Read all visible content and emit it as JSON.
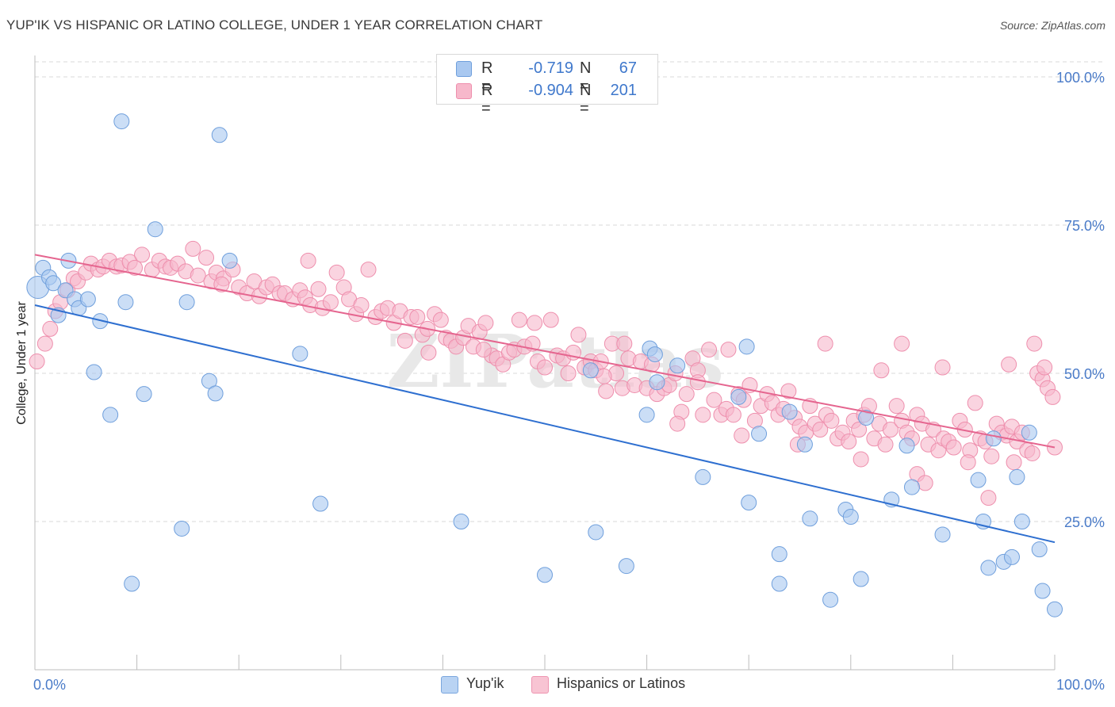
{
  "title": "YUP'IK VS HISPANIC OR LATINO COLLEGE, UNDER 1 YEAR CORRELATION CHART",
  "source": "Source: ZipAtlas.com",
  "watermark": "ZIPatlas",
  "legend_top": [
    {
      "r_label": "R =",
      "r_value": "-0.719",
      "n_label": "N =",
      "n_value": "67",
      "color": "#a9c8f0"
    },
    {
      "r_label": "R =",
      "r_value": "-0.904",
      "n_label": "N =",
      "n_value": "201",
      "color": "#f7b8cb"
    }
  ],
  "legend_bottom": [
    {
      "label": "Yup'ik",
      "color": "#b9d3f3"
    },
    {
      "label": "Hispanics or Latinos",
      "color": "#f8c4d3"
    }
  ],
  "colors": {
    "blue_fill": "#a9c8f0",
    "blue_stroke": "#6f9fdc",
    "blue_line": "#2e6fd0",
    "pink_fill": "#f7b8cb",
    "pink_stroke": "#ee8fad",
    "pink_line": "#e5658f",
    "tick_label": "#4a7bc8",
    "grid": "#d9d9d9"
  },
  "chart_data": {
    "type": "scatter",
    "title": "YUP'IK VS HISPANIC OR LATINO COLLEGE, UNDER 1 YEAR CORRELATION CHART",
    "xlabel": "",
    "ylabel": "College, Under 1 year",
    "xlim": [
      0,
      100
    ],
    "ylim": [
      0,
      100
    ],
    "x_tick_labels": [
      "0.0%",
      "100.0%"
    ],
    "y_tick_labels": [
      "25.0%",
      "50.0%",
      "75.0%",
      "100.0%"
    ],
    "y_ticks": [
      25,
      50,
      75,
      100
    ],
    "grid": true,
    "legend_position": "top-center",
    "series": [
      {
        "name": "Yup'ik",
        "trend": {
          "x": [
            0,
            100
          ],
          "y": [
            61.5,
            21.5
          ]
        },
        "points": [
          [
            0.3,
            64.5
          ],
          [
            0.8,
            67.8
          ],
          [
            1.4,
            66.2
          ],
          [
            1.8,
            65.2
          ],
          [
            2.3,
            59.8
          ],
          [
            3.0,
            64.0
          ],
          [
            3.3,
            69.0
          ],
          [
            3.9,
            62.5
          ],
          [
            4.3,
            61.0
          ],
          [
            5.2,
            62.5
          ],
          [
            5.8,
            50.2
          ],
          [
            6.4,
            58.8
          ],
          [
            7.4,
            43.0
          ],
          [
            8.5,
            92.5
          ],
          [
            8.9,
            62.0
          ],
          [
            9.5,
            14.5
          ],
          [
            10.7,
            46.5
          ],
          [
            11.8,
            74.3
          ],
          [
            14.4,
            23.8
          ],
          [
            14.9,
            62.0
          ],
          [
            17.1,
            48.7
          ],
          [
            17.7,
            46.6
          ],
          [
            18.1,
            90.2
          ],
          [
            19.1,
            69.0
          ],
          [
            26.0,
            53.3
          ],
          [
            28.0,
            28.0
          ],
          [
            41.8,
            25.0
          ],
          [
            50.0,
            16.0
          ],
          [
            54.5,
            50.5
          ],
          [
            55.0,
            23.2
          ],
          [
            58.0,
            17.5
          ],
          [
            60.0,
            43.0
          ],
          [
            60.3,
            54.2
          ],
          [
            60.8,
            53.2
          ],
          [
            61.0,
            48.5
          ],
          [
            63.0,
            51.3
          ],
          [
            65.5,
            32.5
          ],
          [
            69.0,
            46.0
          ],
          [
            70.0,
            28.2
          ],
          [
            69.8,
            54.5
          ],
          [
            71.0,
            39.8
          ],
          [
            73.0,
            19.5
          ],
          [
            73.0,
            14.5
          ],
          [
            74.0,
            43.5
          ],
          [
            75.5,
            38.0
          ],
          [
            76.0,
            25.5
          ],
          [
            78.0,
            11.8
          ],
          [
            79.5,
            27.0
          ],
          [
            80.0,
            25.8
          ],
          [
            81.0,
            15.3
          ],
          [
            81.5,
            42.5
          ],
          [
            84.0,
            28.7
          ],
          [
            85.5,
            37.8
          ],
          [
            86.0,
            30.8
          ],
          [
            89.0,
            22.8
          ],
          [
            92.5,
            32.0
          ],
          [
            93.0,
            25.0
          ],
          [
            93.5,
            17.2
          ],
          [
            94.0,
            39.0
          ],
          [
            95.0,
            18.2
          ],
          [
            95.8,
            19.0
          ],
          [
            96.3,
            32.5
          ],
          [
            96.8,
            25.0
          ],
          [
            97.5,
            40.0
          ],
          [
            98.5,
            20.3
          ],
          [
            98.8,
            13.3
          ],
          [
            100.0,
            10.2
          ]
        ]
      },
      {
        "name": "Hispanics or Latinos",
        "trend": {
          "x": [
            0,
            100
          ],
          "y": [
            70.0,
            37.5
          ]
        },
        "points": [
          [
            0.2,
            52.0
          ],
          [
            1.0,
            55.0
          ],
          [
            1.5,
            57.5
          ],
          [
            2.0,
            60.5
          ],
          [
            2.5,
            62.0
          ],
          [
            3.2,
            64.0
          ],
          [
            3.8,
            66.0
          ],
          [
            4.2,
            65.5
          ],
          [
            5.0,
            67.0
          ],
          [
            5.5,
            68.5
          ],
          [
            6.2,
            67.5
          ],
          [
            6.7,
            68.0
          ],
          [
            7.3,
            69.0
          ],
          [
            8.0,
            68.0
          ],
          [
            8.5,
            68.2
          ],
          [
            9.3,
            68.8
          ],
          [
            9.8,
            67.8
          ],
          [
            10.5,
            70.0
          ],
          [
            11.5,
            67.5
          ],
          [
            12.2,
            69.0
          ],
          [
            12.8,
            68.0
          ],
          [
            13.3,
            67.8
          ],
          [
            14.0,
            68.5
          ],
          [
            14.8,
            67.2
          ],
          [
            15.5,
            71.0
          ],
          [
            16.0,
            66.5
          ],
          [
            16.8,
            69.5
          ],
          [
            17.3,
            65.5
          ],
          [
            17.8,
            67.0
          ],
          [
            18.5,
            66.0
          ],
          [
            19.4,
            67.5
          ],
          [
            20.0,
            64.5
          ],
          [
            20.8,
            63.5
          ],
          [
            21.5,
            65.5
          ],
          [
            22.0,
            63.0
          ],
          [
            22.7,
            64.5
          ],
          [
            23.3,
            65.0
          ],
          [
            24.0,
            63.5
          ],
          [
            24.5,
            63.5
          ],
          [
            25.3,
            62.5
          ],
          [
            26.0,
            64.0
          ],
          [
            26.5,
            62.8
          ],
          [
            27.0,
            61.5
          ],
          [
            27.8,
            64.2
          ],
          [
            28.2,
            61.0
          ],
          [
            29.0,
            62.0
          ],
          [
            29.6,
            67.0
          ],
          [
            30.3,
            64.5
          ],
          [
            30.8,
            62.5
          ],
          [
            31.5,
            60.0
          ],
          [
            32.0,
            61.5
          ],
          [
            32.7,
            67.5
          ],
          [
            33.4,
            59.5
          ],
          [
            34.0,
            60.5
          ],
          [
            34.6,
            61.0
          ],
          [
            35.2,
            58.5
          ],
          [
            35.8,
            60.5
          ],
          [
            36.3,
            55.5
          ],
          [
            36.9,
            59.5
          ],
          [
            37.5,
            59.5
          ],
          [
            38.0,
            56.5
          ],
          [
            38.5,
            57.5
          ],
          [
            39.2,
            60.0
          ],
          [
            39.8,
            59.0
          ],
          [
            40.3,
            56.0
          ],
          [
            40.8,
            55.5
          ],
          [
            41.3,
            54.5
          ],
          [
            42.0,
            56.0
          ],
          [
            42.5,
            58.0
          ],
          [
            43.0,
            54.5
          ],
          [
            43.6,
            57.0
          ],
          [
            44.2,
            58.5
          ],
          [
            44.8,
            53.0
          ],
          [
            45.3,
            52.5
          ],
          [
            45.9,
            51.5
          ],
          [
            46.5,
            53.5
          ],
          [
            47.0,
            54.0
          ],
          [
            47.5,
            59.0
          ],
          [
            48.0,
            54.5
          ],
          [
            48.8,
            55.0
          ],
          [
            49.3,
            52.0
          ],
          [
            50.0,
            51.0
          ],
          [
            50.6,
            59.0
          ],
          [
            51.2,
            53.0
          ],
          [
            51.8,
            52.5
          ],
          [
            52.3,
            50.0
          ],
          [
            52.8,
            53.5
          ],
          [
            53.3,
            56.5
          ],
          [
            53.9,
            51.0
          ],
          [
            54.5,
            52.0
          ],
          [
            55.0,
            50.5
          ],
          [
            55.5,
            52.0
          ],
          [
            56.0,
            47.0
          ],
          [
            56.6,
            55.0
          ],
          [
            57.0,
            50.0
          ],
          [
            57.6,
            47.5
          ],
          [
            58.2,
            52.5
          ],
          [
            58.8,
            48.0
          ],
          [
            59.4,
            52.0
          ],
          [
            60.0,
            47.5
          ],
          [
            60.5,
            51.5
          ],
          [
            61.0,
            46.5
          ],
          [
            61.7,
            47.5
          ],
          [
            62.2,
            48.0
          ],
          [
            62.8,
            50.0
          ],
          [
            63.4,
            43.5
          ],
          [
            63.9,
            46.5
          ],
          [
            64.5,
            52.5
          ],
          [
            65.0,
            50.5
          ],
          [
            65.5,
            43.0
          ],
          [
            66.1,
            54.0
          ],
          [
            66.6,
            45.5
          ],
          [
            67.3,
            43.0
          ],
          [
            67.8,
            44.0
          ],
          [
            68.5,
            43.0
          ],
          [
            69.0,
            46.5
          ],
          [
            69.5,
            45.5
          ],
          [
            70.1,
            48.0
          ],
          [
            70.6,
            42.0
          ],
          [
            71.2,
            44.5
          ],
          [
            71.8,
            46.5
          ],
          [
            72.3,
            45.0
          ],
          [
            72.9,
            43.0
          ],
          [
            73.4,
            44.0
          ],
          [
            73.9,
            47.0
          ],
          [
            74.5,
            42.5
          ],
          [
            75.0,
            41.0
          ],
          [
            75.6,
            40.0
          ],
          [
            76.0,
            44.5
          ],
          [
            76.5,
            41.5
          ],
          [
            77.0,
            40.5
          ],
          [
            77.6,
            43.0
          ],
          [
            78.1,
            42.0
          ],
          [
            78.7,
            39.0
          ],
          [
            79.2,
            40.0
          ],
          [
            79.8,
            38.5
          ],
          [
            80.3,
            42.0
          ],
          [
            80.8,
            40.5
          ],
          [
            81.3,
            43.0
          ],
          [
            81.8,
            44.5
          ],
          [
            82.3,
            39.0
          ],
          [
            82.8,
            41.5
          ],
          [
            83.4,
            38.0
          ],
          [
            83.9,
            40.5
          ],
          [
            84.5,
            44.5
          ],
          [
            85.0,
            42.0
          ],
          [
            85.5,
            40.0
          ],
          [
            86.0,
            39.0
          ],
          [
            86.5,
            43.0
          ],
          [
            87.0,
            41.5
          ],
          [
            87.6,
            38.0
          ],
          [
            88.1,
            40.5
          ],
          [
            88.6,
            37.0
          ],
          [
            89.1,
            39.0
          ],
          [
            89.6,
            38.5
          ],
          [
            90.1,
            37.5
          ],
          [
            90.7,
            42.0
          ],
          [
            91.2,
            40.5
          ],
          [
            91.7,
            37.0
          ],
          [
            92.2,
            45.0
          ],
          [
            92.7,
            39.0
          ],
          [
            93.2,
            38.5
          ],
          [
            93.8,
            36.0
          ],
          [
            94.3,
            41.5
          ],
          [
            94.8,
            40.0
          ],
          [
            95.3,
            39.5
          ],
          [
            95.8,
            41.0
          ],
          [
            96.3,
            38.5
          ],
          [
            96.8,
            40.0
          ],
          [
            97.3,
            37.0
          ],
          [
            97.8,
            36.5
          ],
          [
            98.3,
            50.0
          ],
          [
            98.8,
            49.0
          ],
          [
            99.3,
            47.5
          ],
          [
            99.8,
            46.0
          ],
          [
            100.0,
            37.5
          ],
          [
            18.3,
            65.0
          ],
          [
            26.8,
            69.0
          ],
          [
            44.0,
            54.0
          ],
          [
            55.8,
            49.5
          ],
          [
            63.0,
            41.5
          ],
          [
            69.3,
            39.5
          ],
          [
            74.8,
            38.0
          ],
          [
            81.0,
            35.5
          ],
          [
            85.0,
            55.0
          ],
          [
            86.5,
            33.0
          ],
          [
            87.3,
            31.5
          ],
          [
            89.0,
            51.0
          ],
          [
            91.5,
            35.0
          ],
          [
            93.5,
            29.0
          ],
          [
            96.0,
            35.0
          ],
          [
            98.0,
            55.0
          ],
          [
            99.0,
            51.0
          ],
          [
            57.8,
            55.0
          ],
          [
            65.0,
            48.5
          ],
          [
            68.0,
            54.0
          ],
          [
            77.5,
            55.0
          ],
          [
            83.0,
            50.5
          ],
          [
            95.5,
            51.5
          ],
          [
            49.0,
            58.5
          ],
          [
            38.6,
            53.5
          ]
        ]
      }
    ]
  }
}
